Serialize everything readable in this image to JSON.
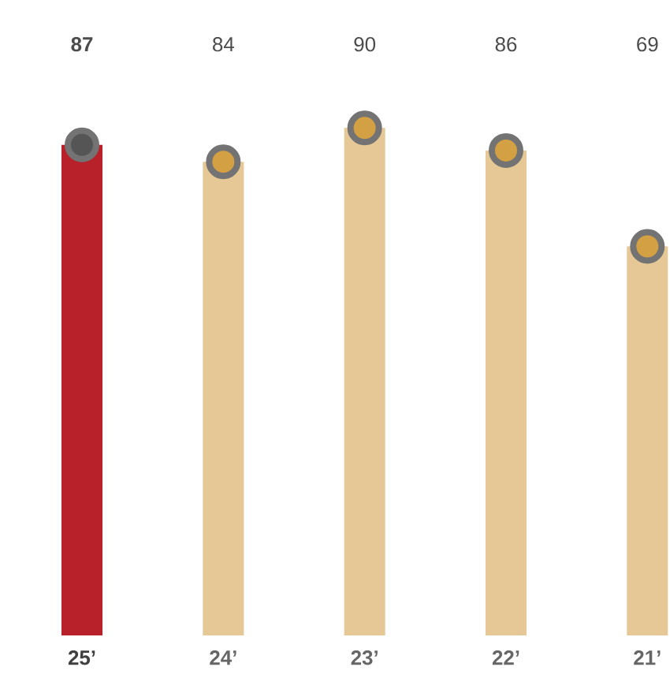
{
  "chart_data": {
    "type": "bar",
    "categories": [
      "25’",
      "24’",
      "23’",
      "22’",
      "21’"
    ],
    "series": [
      {
        "values": [
          87,
          84,
          90,
          86,
          69
        ],
        "value_labels": [
          "**87**",
          "84",
          "90",
          "86",
          "69"
        ],
        "colors": [
          "#b8202a",
          "#e6c896",
          "#e6c896",
          "#e6c896",
          "#e6c896"
        ]
      },
      {
        "type": "scatter",
        "x": [
          "25’",
          "24’",
          "23’",
          "22’",
          "21’"
        ],
        "values": [
          87,
          84,
          90,
          86,
          69
        ],
        "colors": [
          "#555555",
          "#d4a044",
          "#d4a044",
          "#d4a044",
          "#d4a044"
        ],
        "marker": "circle"
      }
    ]
  }
}
